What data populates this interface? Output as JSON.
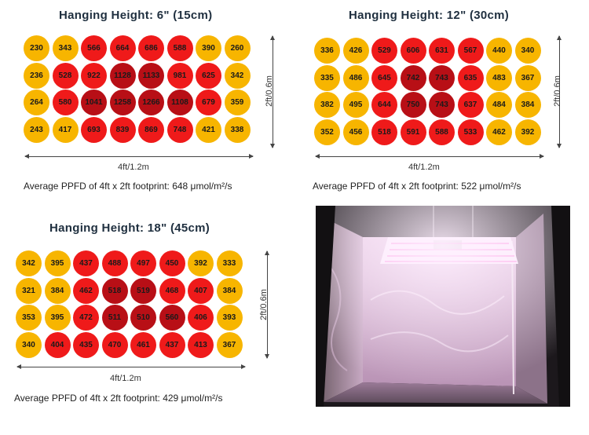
{
  "colors": {
    "low": "#f7b500",
    "mid": "#ef1a1a",
    "high": "#b80f16"
  },
  "chart_data": [
    {
      "type": "heatmap",
      "title": "Hanging Height: 6\" (15cm)",
      "width_label": "4ft/1.2m",
      "height_label": "2ft/0.6m",
      "footer": "Average PPFD of 4ft x 2ft footprint: 648 μmol/m²/s",
      "rows": [
        [
          230,
          343,
          566,
          664,
          686,
          588,
          390,
          260
        ],
        [
          236,
          528,
          922,
          1128,
          1133,
          981,
          625,
          342
        ],
        [
          264,
          580,
          1041,
          1258,
          1266,
          1108,
          679,
          359
        ],
        [
          243,
          417,
          693,
          839,
          869,
          748,
          421,
          338
        ]
      ],
      "tiers": [
        [
          "low",
          "low",
          "mid",
          "mid",
          "mid",
          "mid",
          "low",
          "low"
        ],
        [
          "low",
          "mid",
          "mid",
          "high",
          "high",
          "mid",
          "mid",
          "low"
        ],
        [
          "low",
          "mid",
          "high",
          "high",
          "high",
          "high",
          "mid",
          "low"
        ],
        [
          "low",
          "low",
          "mid",
          "mid",
          "mid",
          "mid",
          "low",
          "low"
        ]
      ]
    },
    {
      "type": "heatmap",
      "title": "Hanging Height: 12\" (30cm)",
      "width_label": "4ft/1.2m",
      "height_label": "2ft/0.6m",
      "footer": "Average PPFD of 4ft x 2ft footprint: 522 μmol/m²/s",
      "rows": [
        [
          336,
          426,
          529,
          606,
          631,
          567,
          440,
          340
        ],
        [
          335,
          486,
          645,
          742,
          743,
          635,
          483,
          367
        ],
        [
          382,
          495,
          644,
          750,
          743,
          637,
          484,
          384
        ],
        [
          352,
          456,
          518,
          591,
          588,
          533,
          462,
          392
        ]
      ],
      "tiers": [
        [
          "low",
          "low",
          "mid",
          "mid",
          "mid",
          "mid",
          "low",
          "low"
        ],
        [
          "low",
          "low",
          "mid",
          "high",
          "high",
          "mid",
          "low",
          "low"
        ],
        [
          "low",
          "low",
          "mid",
          "high",
          "high",
          "mid",
          "low",
          "low"
        ],
        [
          "low",
          "low",
          "mid",
          "mid",
          "mid",
          "mid",
          "low",
          "low"
        ]
      ]
    },
    {
      "type": "heatmap",
      "title": "Hanging Height: 18\" (45cm)",
      "width_label": "4ft/1.2m",
      "height_label": "2ft/0.6m",
      "footer": "Average PPFD of 4ft x 2ft footprint: 429 μmol/m²/s",
      "rows": [
        [
          342,
          395,
          437,
          488,
          497,
          450,
          392,
          333
        ],
        [
          321,
          384,
          462,
          518,
          519,
          468,
          407,
          384
        ],
        [
          353,
          395,
          472,
          511,
          510,
          560,
          406,
          393
        ],
        [
          340,
          404,
          435,
          470,
          461,
          437,
          413,
          367
        ]
      ],
      "tiers": [
        [
          "low",
          "low",
          "mid",
          "mid",
          "mid",
          "mid",
          "low",
          "low"
        ],
        [
          "low",
          "low",
          "mid",
          "high",
          "high",
          "mid",
          "mid",
          "low"
        ],
        [
          "low",
          "low",
          "mid",
          "high",
          "high",
          "high",
          "mid",
          "low"
        ],
        [
          "low",
          "mid",
          "mid",
          "mid",
          "mid",
          "mid",
          "mid",
          "low"
        ]
      ]
    }
  ],
  "photo": {
    "icon": "grow-tent-photo"
  }
}
